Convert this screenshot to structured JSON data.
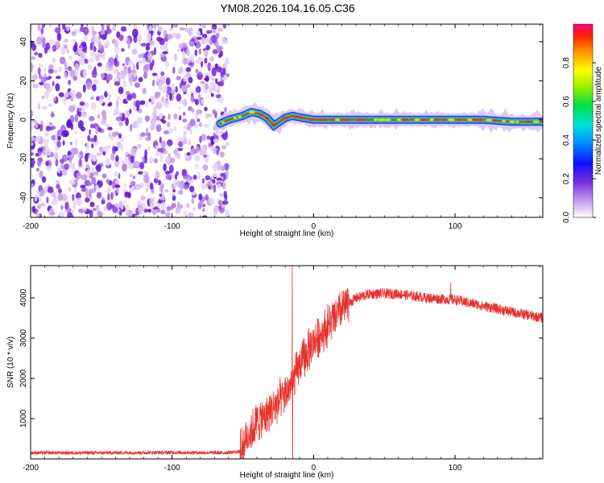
{
  "chart_data": [
    {
      "type": "heatmap",
      "title": "YM08.2026.104.16.05.C36",
      "xlabel": "Height of straight line (km)",
      "ylabel": "Frequency (Hz)",
      "xlim": [
        -200,
        162
      ],
      "ylim": [
        -50,
        49
      ],
      "xticks": [
        -200,
        -100,
        0,
        100
      ],
      "xtick_labels": [
        "-200",
        "-100",
        "0",
        "100"
      ],
      "yticks": [
        -40,
        -20,
        0,
        20,
        40
      ],
      "ytick_labels": [
        "-40",
        "-20",
        "0",
        "20",
        "40"
      ],
      "noise_region_x": [
        -200,
        -63
      ],
      "signal_ridge": {
        "x": [
          -66,
          -60,
          -50,
          -44,
          -38,
          -33,
          -28,
          -24,
          -20,
          -15,
          -8,
          0,
          20,
          50,
          80,
          100,
          120,
          140,
          162
        ],
        "freq": [
          -2,
          0,
          2,
          4,
          3,
          1,
          -3,
          -1,
          1,
          2,
          1,
          0,
          0,
          0,
          0,
          0,
          0,
          -1,
          -1
        ]
      },
      "colorbar": {
        "label": "Normalized spectral amplitude",
        "range": [
          0,
          1
        ],
        "ticks": [
          0.0,
          0.2,
          0.4,
          0.6,
          0.8
        ],
        "tick_labels": [
          "0.0",
          "0.2",
          "0.4",
          "0.6",
          "0.8"
        ]
      }
    },
    {
      "type": "line",
      "xlabel": "Height of straight line (km)",
      "ylabel": "SNR (10 * v/v)",
      "xlim": [
        -200,
        162
      ],
      "ylim": [
        0,
        4800
      ],
      "xticks": [
        -200,
        -100,
        0,
        100
      ],
      "xtick_labels": [
        "-200",
        "-100",
        "0",
        "100"
      ],
      "yticks": [
        1000,
        2000,
        3000,
        4000
      ],
      "ytick_labels": [
        "1000",
        "2000",
        "3000",
        "4000"
      ],
      "color": "#e8322f",
      "series": [
        {
          "name": "SNR",
          "x": [
            -200,
            -150,
            -100,
            -65,
            -52,
            -48,
            -40,
            -30,
            -20,
            -15,
            -10,
            -5,
            0,
            10,
            20,
            30,
            40,
            60,
            80,
            100,
            120,
            140,
            162
          ],
          "y": [
            150,
            150,
            160,
            150,
            180,
            500,
            900,
            1200,
            1600,
            1900,
            2300,
            2600,
            2900,
            3300,
            3700,
            4000,
            4100,
            4100,
            4000,
            3950,
            3800,
            3650,
            3500
          ]
        }
      ],
      "spikes": [
        {
          "x": -15,
          "y": 4800
        },
        {
          "x": 97,
          "y": 4380
        }
      ]
    }
  ]
}
